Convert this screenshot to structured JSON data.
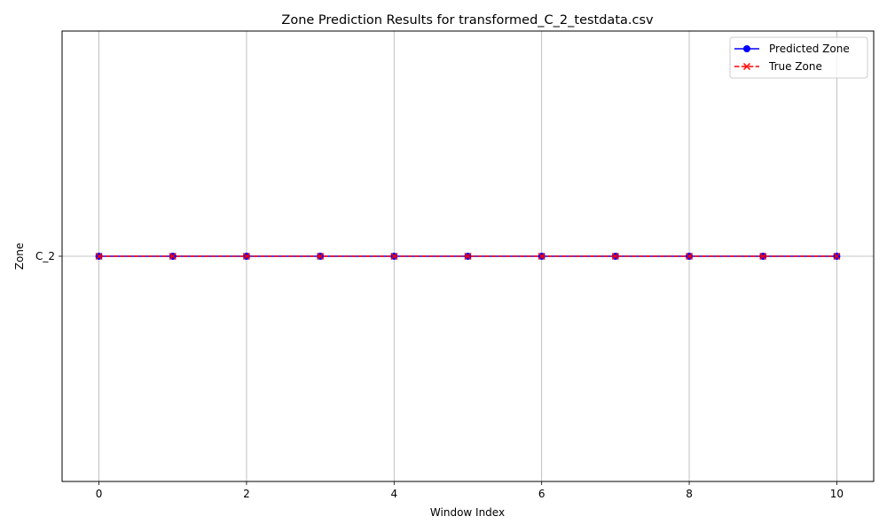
{
  "chart_data": {
    "type": "line",
    "title": "Zone Prediction Results for transformed_C_2_testdata.csv",
    "xlabel": "Window Index",
    "ylabel": "Zone",
    "xlim": [
      -0.5,
      10.5
    ],
    "x_ticks": [
      0,
      2,
      4,
      6,
      8,
      10
    ],
    "y_categories": [
      "C_2"
    ],
    "grid": true,
    "legend_position": "top-right",
    "x": [
      0,
      1,
      2,
      3,
      4,
      5,
      6,
      7,
      8,
      9,
      10
    ],
    "series": [
      {
        "name": "Predicted Zone",
        "values": [
          "C_2",
          "C_2",
          "C_2",
          "C_2",
          "C_2",
          "C_2",
          "C_2",
          "C_2",
          "C_2",
          "C_2",
          "C_2"
        ],
        "color": "#0000ff",
        "line_style": "solid",
        "marker": "circle"
      },
      {
        "name": "True Zone",
        "values": [
          "C_2",
          "C_2",
          "C_2",
          "C_2",
          "C_2",
          "C_2",
          "C_2",
          "C_2",
          "C_2",
          "C_2",
          "C_2"
        ],
        "color": "#ff0000",
        "line_style": "dashed",
        "marker": "x"
      }
    ]
  }
}
